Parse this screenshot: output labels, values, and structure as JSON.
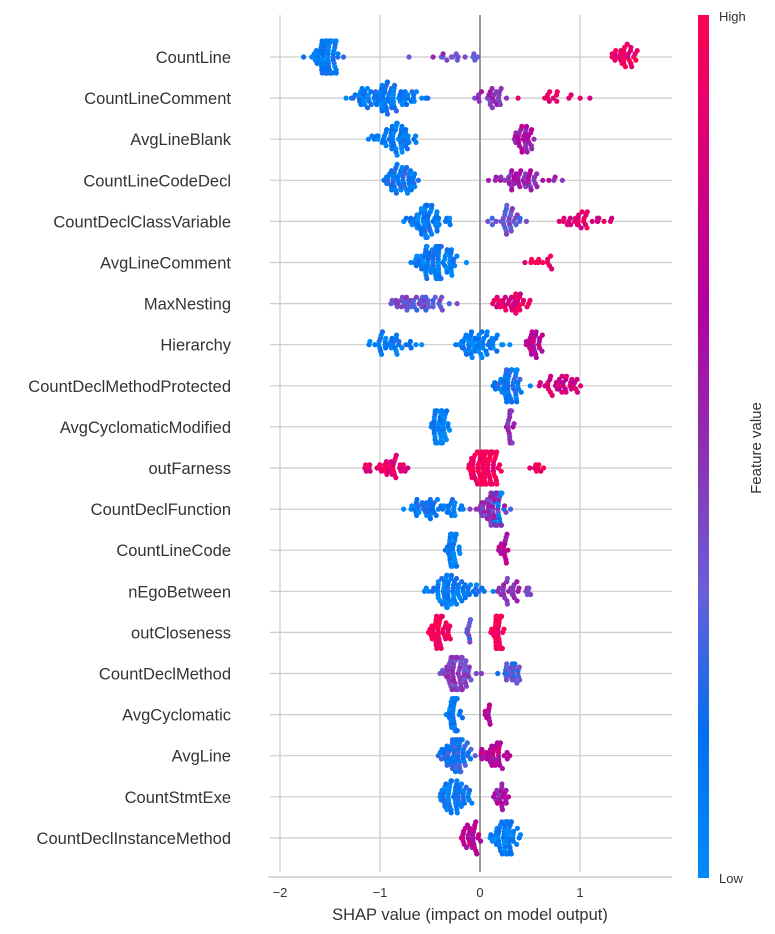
{
  "chart_data": {
    "type": "scatter",
    "subtype": "shap-beeswarm-summary",
    "title": "",
    "xlabel": "SHAP value (impact on model output)",
    "ylabel": "",
    "xlim": [
      -2.1,
      1.92
    ],
    "xticks": [
      -2,
      -1,
      0,
      1
    ],
    "xtick_labels": [
      "−2",
      "−1",
      "0",
      "1"
    ],
    "grid": true,
    "colorbar": {
      "title": "Feature value",
      "high_label": "High",
      "low_label": "Low",
      "colors": [
        "#008bfb",
        "#0070f0",
        "#6a5ed8",
        "#8e2fb0",
        "#b4009e",
        "#d8007a",
        "#ff0052"
      ]
    },
    "features": [
      {
        "name": "CountLine",
        "clusters": [
          {
            "center": -1.55,
            "spread": 0.28,
            "count": 70,
            "value": 0.12
          },
          {
            "center": -0.2,
            "spread": 0.75,
            "count": 16,
            "value": 0.42
          },
          {
            "center": 1.45,
            "spread": 0.3,
            "count": 30,
            "value": 0.9
          }
        ]
      },
      {
        "name": "CountLineComment",
        "clusters": [
          {
            "center": -0.95,
            "spread": 0.6,
            "count": 85,
            "value": 0.12
          },
          {
            "center": 0.1,
            "spread": 0.3,
            "count": 25,
            "value": 0.5
          },
          {
            "center": 0.8,
            "spread": 0.5,
            "count": 14,
            "value": 0.92
          }
        ]
      },
      {
        "name": "AvgLineBlank",
        "clusters": [
          {
            "center": -0.85,
            "spread": 0.35,
            "count": 55,
            "value": 0.1
          },
          {
            "center": 0.45,
            "spread": 0.28,
            "count": 30,
            "value": 0.6
          }
        ]
      },
      {
        "name": "CountLineCodeDecl",
        "clusters": [
          {
            "center": -0.8,
            "spread": 0.3,
            "count": 50,
            "value": 0.15
          },
          {
            "center": 0.45,
            "spread": 0.55,
            "count": 45,
            "value": 0.55
          }
        ]
      },
      {
        "name": "CountDeclClassVariable",
        "clusters": [
          {
            "center": -0.55,
            "spread": 0.4,
            "count": 60,
            "value": 0.1
          },
          {
            "center": 0.25,
            "spread": 0.3,
            "count": 30,
            "value": 0.35
          },
          {
            "center": 1.0,
            "spread": 0.6,
            "count": 30,
            "value": 0.85
          }
        ]
      },
      {
        "name": "AvgLineComment",
        "clusters": [
          {
            "center": -0.45,
            "spread": 0.4,
            "count": 80,
            "value": 0.1
          },
          {
            "center": 0.6,
            "spread": 0.35,
            "count": 12,
            "value": 0.98
          }
        ]
      },
      {
        "name": "MaxNesting",
        "clusters": [
          {
            "center": -0.6,
            "spread": 0.55,
            "count": 45,
            "value": 0.35
          },
          {
            "center": 0.3,
            "spread": 0.3,
            "count": 35,
            "value": 0.88
          }
        ]
      },
      {
        "name": "Hierarchy",
        "clusters": [
          {
            "center": -0.9,
            "spread": 0.55,
            "count": 35,
            "value": 0.1
          },
          {
            "center": 0.0,
            "spread": 0.35,
            "count": 55,
            "value": 0.08
          },
          {
            "center": 0.55,
            "spread": 0.12,
            "count": 25,
            "value": 0.7
          }
        ]
      },
      {
        "name": "CountDeclMethodProtected",
        "clusters": [
          {
            "center": 0.3,
            "spread": 0.25,
            "count": 55,
            "value": 0.15
          },
          {
            "center": 0.8,
            "spread": 0.4,
            "count": 35,
            "value": 0.8
          }
        ]
      },
      {
        "name": "AvgCyclomaticModified",
        "clusters": [
          {
            "center": -0.4,
            "spread": 0.15,
            "count": 45,
            "value": 0.08
          },
          {
            "center": 0.28,
            "spread": 0.12,
            "count": 20,
            "value": 0.55
          }
        ]
      },
      {
        "name": "outFarness",
        "clusters": [
          {
            "center": -0.9,
            "spread": 0.5,
            "count": 35,
            "value": 0.88
          },
          {
            "center": 0.05,
            "spread": 0.3,
            "count": 80,
            "value": 0.98
          },
          {
            "center": 0.6,
            "spread": 0.2,
            "count": 8,
            "value": 0.98
          }
        ]
      },
      {
        "name": "CountDeclFunction",
        "clusters": [
          {
            "center": -0.45,
            "spread": 0.45,
            "count": 50,
            "value": 0.12
          },
          {
            "center": 0.1,
            "spread": 0.25,
            "count": 45,
            "value": 0.5
          },
          {
            "center": 0.2,
            "spread": 0.15,
            "count": 20,
            "value": 0.15
          }
        ]
      },
      {
        "name": "CountLineCode",
        "clusters": [
          {
            "center": -0.28,
            "spread": 0.12,
            "count": 35,
            "value": 0.08
          },
          {
            "center": 0.25,
            "spread": 0.1,
            "count": 15,
            "value": 0.65
          }
        ]
      },
      {
        "name": "nEgoBetween",
        "clusters": [
          {
            "center": -0.25,
            "spread": 0.45,
            "count": 70,
            "value": 0.12
          },
          {
            "center": 0.35,
            "spread": 0.3,
            "count": 30,
            "value": 0.5
          }
        ]
      },
      {
        "name": "outCloseness",
        "clusters": [
          {
            "center": -0.4,
            "spread": 0.2,
            "count": 40,
            "value": 0.97
          },
          {
            "center": -0.12,
            "spread": 0.08,
            "count": 10,
            "value": 0.3
          },
          {
            "center": 0.18,
            "spread": 0.1,
            "count": 40,
            "value": 0.98
          }
        ]
      },
      {
        "name": "CountDeclMethod",
        "clusters": [
          {
            "center": -0.25,
            "spread": 0.3,
            "count": 70,
            "value": 0.45
          },
          {
            "center": 0.3,
            "spread": 0.18,
            "count": 25,
            "value": 0.3
          }
        ]
      },
      {
        "name": "AvgCyclomatic",
        "clusters": [
          {
            "center": -0.25,
            "spread": 0.12,
            "count": 35,
            "value": 0.08
          },
          {
            "center": 0.08,
            "spread": 0.05,
            "count": 10,
            "value": 0.65
          }
        ]
      },
      {
        "name": "AvgLine",
        "clusters": [
          {
            "center": -0.25,
            "spread": 0.3,
            "count": 60,
            "value": 0.18
          },
          {
            "center": 0.15,
            "spread": 0.25,
            "count": 35,
            "value": 0.7
          }
        ]
      },
      {
        "name": "CountStmtExe",
        "clusters": [
          {
            "center": -0.25,
            "spread": 0.3,
            "count": 55,
            "value": 0.12
          },
          {
            "center": 0.2,
            "spread": 0.2,
            "count": 20,
            "value": 0.6
          }
        ]
      },
      {
        "name": "CountDeclInstanceMethod",
        "clusters": [
          {
            "center": -0.1,
            "spread": 0.2,
            "count": 30,
            "value": 0.7
          },
          {
            "center": 0.25,
            "spread": 0.25,
            "count": 60,
            "value": 0.1
          }
        ]
      }
    ]
  }
}
